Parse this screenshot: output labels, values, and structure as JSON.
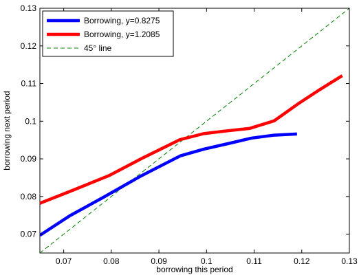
{
  "chart_data": {
    "type": "line",
    "xlabel": "borrowing this period",
    "ylabel": "borrowing next period",
    "xlim": [
      0.065,
      0.13
    ],
    "ylim": [
      0.065,
      0.13
    ],
    "xticks": [
      0.07,
      0.08,
      0.09,
      0.1,
      0.11,
      0.12,
      0.13
    ],
    "xtick_labels": [
      "0.07",
      "0.08",
      "0.09",
      "0.1",
      "0.11",
      "0.12",
      "0.13"
    ],
    "yticks": [
      0.07,
      0.08,
      0.09,
      0.1,
      0.11,
      0.12,
      0.13
    ],
    "ytick_labels": [
      "0.07",
      "0.08",
      "0.09",
      "0.1",
      "0.11",
      "0.12",
      "0.13"
    ],
    "grid": false,
    "legend_position": "top-left",
    "series": [
      {
        "name": "Borrowing, y=0.8275",
        "color": "#0000ff",
        "style": "solid",
        "x": [
          0.065,
          0.0713,
          0.0785,
          0.0863,
          0.0945,
          0.0995,
          0.1047,
          0.1094,
          0.1142,
          0.119
        ],
        "y": [
          0.0697,
          0.0749,
          0.0799,
          0.0855,
          0.0908,
          0.0926,
          0.0941,
          0.0955,
          0.0963,
          0.0966
        ]
      },
      {
        "name": "Borrowing, y=1.2085",
        "color": "#ff0000",
        "style": "solid",
        "x": [
          0.065,
          0.0716,
          0.0796,
          0.0867,
          0.0944,
          0.0994,
          0.104,
          0.1091,
          0.1142,
          0.1191,
          0.1238,
          0.1285
        ],
        "y": [
          0.0782,
          0.0815,
          0.0856,
          0.0903,
          0.0951,
          0.0967,
          0.0974,
          0.0981,
          0.1001,
          0.1045,
          0.1084,
          0.1121
        ]
      },
      {
        "name": "45° line",
        "color": "#008000",
        "style": "dashed",
        "x": [
          0.065,
          0.13
        ],
        "y": [
          0.065,
          0.13
        ]
      }
    ]
  }
}
